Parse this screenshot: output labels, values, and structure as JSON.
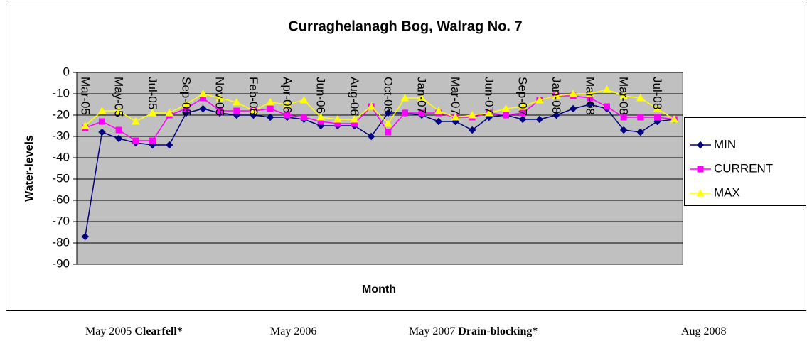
{
  "chart_data": {
    "type": "line",
    "title": "Curraghelanagh Bog, Walrag No. 7",
    "y_label": "Water-levels",
    "x_label": "Month",
    "categories": [
      "Mar-05",
      null,
      "May-05",
      null,
      "Jul-05",
      null,
      "Sep-05",
      null,
      "Nov-05",
      null,
      "Feb-06",
      null,
      "Apr-06",
      null,
      "Jun-06",
      null,
      "Aug-06",
      null,
      "Oct-06",
      null,
      "Jan-07",
      null,
      "Mar-07",
      null,
      "Jun-07",
      null,
      "Sep-07",
      null,
      "Jan-08",
      null,
      "Mar-08",
      null,
      "Mar-08",
      null,
      "Jul-08",
      null
    ],
    "series": [
      {
        "name": "MIN",
        "color": "#000080",
        "marker": "diamond",
        "values": [
          -77,
          -28,
          -31,
          -33,
          -34,
          -34,
          -19,
          -17,
          -19,
          -20,
          -20,
          -21,
          -21,
          -22,
          -25,
          -25,
          -25,
          -30,
          -19,
          -19,
          -20,
          -23,
          -23,
          -27,
          -21,
          -20,
          -22,
          -22,
          -20,
          -17,
          -15,
          -17,
          -27,
          -28,
          -23,
          -22
        ]
      },
      {
        "name": "CURRENT",
        "color": "#FF00FF",
        "marker": "square",
        "values": [
          -26,
          -23,
          -27,
          -32,
          -32,
          -20,
          -17,
          -12,
          -18,
          -18,
          -18,
          -17,
          -20,
          -21,
          -23,
          -24,
          -24,
          -16,
          -28,
          -19,
          -19,
          -19,
          -21,
          -21,
          -19,
          -20,
          -19,
          -13,
          -11,
          -11,
          -12,
          -16,
          -21,
          -21,
          -21,
          -22
        ]
      },
      {
        "name": "MAX",
        "color": "#FFFF00",
        "marker": "triangle",
        "values": [
          -25,
          -18,
          -18,
          -23,
          -19,
          -19,
          -15,
          -10,
          -12,
          -14,
          -18,
          -14,
          -15,
          -13,
          -21,
          -22,
          -22,
          -16,
          -24,
          -12,
          -12,
          -18,
          -21,
          -20,
          -19,
          -17,
          -16,
          -13,
          -11,
          -10,
          -10,
          -8,
          -11,
          -12,
          -17,
          -22
        ]
      }
    ],
    "ylim": [
      -90,
      0
    ],
    "yticks": [
      0,
      -10,
      -20,
      -30,
      -40,
      -50,
      -60,
      -70,
      -80,
      -90
    ],
    "grid": true,
    "legend": "right"
  },
  "footnotes": [
    {
      "text": "May 2005",
      "bold": "Clearfell*"
    },
    {
      "text": "May 2006"
    },
    {
      "text": "May 2007",
      "bold": "Drain-blocking*"
    },
    {
      "text": "Aug 2008"
    }
  ]
}
